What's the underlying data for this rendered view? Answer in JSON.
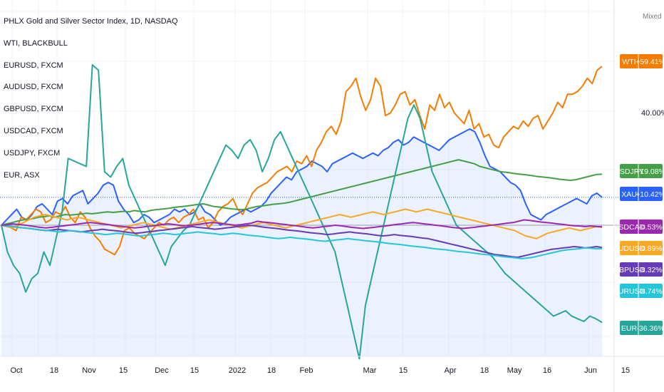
{
  "chart_data": {
    "type": "line",
    "title": "PHLX Gold and Silver Sector Index, 1D, NASDAQ",
    "legend": [
      "WTI, BLACKBULL",
      "EURUSD, FXCM",
      "AUDUSD, FXCM",
      "GBPUSD, FXCM",
      "USDCAD, FXCM",
      "USDJPY, FXCM",
      "EUR, ASX"
    ],
    "scale_mode": "Mixed",
    "price_scale_ticks": [
      "40.00%"
    ],
    "x_ticks": [
      "Oct",
      "18",
      "Nov",
      "15",
      "Dec",
      "15",
      "2022",
      "18",
      "Feb",
      "Mar",
      "15",
      "Apr",
      "18",
      "May",
      "16",
      "Jun",
      "15"
    ],
    "grid": true,
    "legend_placement": "top-left",
    "series": [
      {
        "name": "WTI",
        "color": "#f57c00",
        "value_label": "+59.41%",
        "values": [
          0,
          0.5,
          -1,
          -2,
          3,
          2,
          4,
          6,
          5,
          1,
          2,
          5,
          4,
          7,
          3,
          1,
          5,
          3,
          -1,
          -4,
          -6,
          -9,
          -10,
          -11,
          -8,
          -2,
          -1,
          -3,
          -4,
          -5,
          -3,
          -1,
          1,
          0,
          2,
          3,
          1,
          3,
          4,
          6,
          2,
          3,
          -1,
          1,
          5,
          7,
          8,
          10,
          6,
          4,
          8,
          12,
          14,
          15,
          16,
          18,
          20,
          21,
          22,
          20,
          24,
          23,
          26,
          22,
          28,
          31,
          35,
          37,
          34,
          39,
          50,
          52,
          55,
          48,
          43,
          47,
          55,
          52,
          41,
          42,
          45,
          49,
          50,
          45,
          47,
          41,
          36,
          45,
          43,
          49,
          44,
          46,
          42,
          40,
          38,
          43,
          36,
          38,
          33,
          34,
          30,
          29,
          33,
          35,
          37,
          36,
          39,
          37,
          40,
          41,
          36,
          39,
          42,
          46,
          44,
          49,
          49,
          50,
          52,
          55,
          53,
          58,
          59.41
        ]
      },
      {
        "name": "XAU",
        "color": "#2962ff",
        "value_label": "+10.42%",
        "fill": true,
        "values": [
          0,
          2,
          4,
          6,
          3,
          2,
          4,
          7,
          8,
          6,
          4,
          9,
          10,
          8,
          11,
          12,
          13,
          8,
          10,
          12,
          15,
          16,
          15,
          9,
          6,
          4,
          1,
          2,
          4,
          3,
          1,
          2,
          3,
          4,
          6,
          5,
          6,
          4,
          5,
          8,
          5,
          4,
          2,
          0,
          1,
          3,
          4,
          5,
          6,
          5,
          6,
          7,
          9,
          12,
          14,
          16,
          18,
          17,
          20,
          21,
          22,
          24,
          23,
          22,
          20,
          23,
          24,
          25,
          26,
          27,
          26,
          25,
          26,
          27,
          26,
          28,
          29,
          31,
          32,
          30,
          31,
          33,
          32,
          31,
          30,
          29,
          28,
          30,
          32,
          33,
          34,
          35,
          36,
          35,
          31,
          26,
          22,
          21,
          20,
          18,
          16,
          15,
          13,
          8,
          4,
          3,
          2,
          4,
          5,
          6,
          7,
          8,
          9,
          10,
          9,
          8,
          11,
          12,
          10.42
        ]
      },
      {
        "name": "USDJPY",
        "color": "#43a047",
        "value_label": "+19.08%",
        "values": [
          0,
          0.5,
          1,
          1.5,
          2,
          2.2,
          2.5,
          3,
          3.2,
          3.5,
          3,
          3.5,
          4,
          3.8,
          4,
          4.2,
          4.5,
          4.3,
          4.5,
          4.8,
          5,
          4.8,
          5,
          5.2,
          5,
          5.5,
          5.2,
          5,
          5.5,
          5.8,
          6,
          6.2,
          6.5,
          6.8,
          7,
          7.2,
          7.5,
          7.8,
          8,
          7.5,
          7,
          6.8,
          6.5,
          6.2,
          6,
          5.8,
          6,
          6.5,
          7,
          7.2,
          7.5,
          7.8,
          8,
          8.2,
          8.5,
          9,
          9.5,
          10,
          10.5,
          11,
          11.5,
          12,
          12.5,
          13,
          13.5,
          14,
          14.5,
          15,
          15.5,
          16,
          16.5,
          17,
          17.5,
          18,
          18.5,
          19,
          19.5,
          20,
          20.5,
          21,
          21.5,
          22,
          22.5,
          23,
          23.5,
          24,
          24.5,
          24,
          23.5,
          23,
          22,
          21.5,
          21,
          20.5,
          20,
          19.8,
          19.5,
          19.2,
          19,
          18.8,
          18.5,
          18.2,
          18,
          17.8,
          17.5,
          17.2,
          17,
          16.8,
          17,
          17.5,
          18,
          18.5,
          19,
          19.08
        ]
      },
      {
        "name": "USDCAD",
        "color": "#9c27b0",
        "value_label": "-0.53%",
        "values": [
          0,
          0.2,
          0.5,
          0.3,
          0.1,
          -0.2,
          -0.5,
          -0.8,
          -1,
          -0.8,
          -0.5,
          -0.3,
          0,
          0.2,
          0.5,
          0.8,
          1,
          0.8,
          0.5,
          0.3,
          0,
          -0.3,
          -0.5,
          -0.8,
          -1,
          -0.8,
          -0.5,
          -0.3,
          0,
          0.3,
          0.5,
          0.3,
          0,
          -0.2,
          0,
          0.2,
          0.5,
          0.8,
          1,
          0.8,
          0.5,
          0.3,
          0,
          0.2,
          0.5,
          0.8,
          1.5,
          1.2,
          1,
          0.8,
          0.5,
          0.3,
          0,
          -0.2,
          -0.5,
          -0.8,
          -1,
          -0.8,
          -0.5,
          -0.3,
          0,
          -0.2,
          -0.5,
          -0.8,
          -1,
          -1.2,
          -1,
          -0.8,
          -0.5,
          -0.3,
          0,
          0.3,
          0.5,
          0.8,
          1,
          0.8,
          0.5,
          0.3,
          0,
          -0.2,
          -0.5,
          -0.8,
          -1,
          -1.2,
          -1,
          -0.8,
          -0.5,
          -0.3,
          0,
          0.2,
          0.5,
          0.8,
          1,
          1.5,
          2,
          1.8,
          1.5,
          1.2,
          1,
          0.8,
          0.5,
          0.3,
          0,
          -0.2,
          -0.3,
          -0.5,
          -0.3,
          -0.5,
          -0.53
        ]
      },
      {
        "name": "AUDUSD",
        "color": "#f9a825",
        "value_label": "-0.89%",
        "values": [
          0,
          -0.5,
          -1,
          0,
          1,
          2,
          3,
          3.5,
          4,
          3.5,
          3,
          2.5,
          2,
          2.5,
          3,
          2.5,
          2,
          1.5,
          1,
          0.5,
          0,
          -0.5,
          -1,
          -0.5,
          0,
          0.5,
          1,
          0.5,
          0,
          -0.5,
          -1,
          -1.5,
          -1,
          -0.5,
          0,
          0.5,
          1,
          1.5,
          2,
          1.5,
          1,
          0.5,
          0,
          -0.5,
          -1,
          -0.5,
          0,
          0.5,
          1,
          0.5,
          0,
          -0.5,
          -1,
          -0.5,
          0,
          0.5,
          1,
          1.5,
          2,
          2.5,
          3,
          3.5,
          4,
          3.5,
          3,
          3.5,
          4,
          4.5,
          5,
          4.5,
          4,
          4.5,
          5,
          5.5,
          6,
          5.5,
          5,
          5.5,
          6,
          5.5,
          5,
          4.5,
          4,
          3.5,
          3,
          2.5,
          2,
          1.5,
          1,
          0.5,
          0,
          -0.5,
          -1,
          -1.5,
          -2,
          -3,
          -4,
          -4.5,
          -5,
          -4,
          -3,
          -2.5,
          -2,
          -1.5,
          -1,
          -1.5,
          -2,
          -1.5,
          -1,
          -0.5,
          -0.89
        ]
      },
      {
        "name": "GBPUSD",
        "color": "#673ab7",
        "value_label": "-8.32%",
        "values": [
          0,
          -0.3,
          -0.5,
          -0.8,
          -1,
          -1.2,
          -1.5,
          -1.8,
          -2,
          -1.8,
          -1.5,
          -1.8,
          -2,
          -2.2,
          -2.5,
          -2.3,
          -2,
          -1.8,
          -1.5,
          -1.8,
          -2,
          -2.2,
          -2.5,
          -2.8,
          -3,
          -2.8,
          -2.5,
          -2.3,
          -2,
          -1.8,
          -1.5,
          -1.3,
          -1,
          -0.8,
          -0.5,
          -0.8,
          -1,
          -1.2,
          -1.5,
          -1.3,
          -1,
          -0.8,
          -0.5,
          -0.3,
          0,
          -0.2,
          -0.5,
          -0.8,
          -1,
          -1.2,
          -1.5,
          -1.8,
          -2,
          -2.2,
          -2.5,
          -2.8,
          -3,
          -3.2,
          -3.5,
          -3.3,
          -3,
          -2.8,
          -2.5,
          -2.8,
          -3,
          -3.2,
          -3.5,
          -3.8,
          -4,
          -3.8,
          -3.5,
          -3.8,
          -4,
          -4.2,
          -4.5,
          -4.8,
          -5,
          -5.5,
          -6,
          -6.5,
          -7,
          -7.5,
          -8,
          -8.5,
          -9,
          -9.5,
          -10,
          -10.5,
          -11,
          -11.2,
          -11.5,
          -11.8,
          -12,
          -11.5,
          -11,
          -10.5,
          -10,
          -9.5,
          -9,
          -8.8,
          -8.5,
          -8.3,
          -8,
          -8.2,
          -8.5,
          -8.3,
          -8,
          -8.32
        ]
      },
      {
        "name": "EURUSD",
        "color": "#26c6da",
        "value_label": "-8.74%",
        "values": [
          0,
          -0.3,
          -0.5,
          -0.8,
          -1,
          -1.3,
          -1.5,
          -1.8,
          -2,
          -2.2,
          -2.5,
          -2.3,
          -2,
          -2.2,
          -2.5,
          -2.8,
          -3,
          -3.2,
          -3.5,
          -3.3,
          -3,
          -3.2,
          -3.5,
          -3.8,
          -4,
          -3.8,
          -3.5,
          -3.3,
          -3,
          -3.2,
          -3.5,
          -3.3,
          -3,
          -2.8,
          -2.5,
          -2.8,
          -3,
          -3.2,
          -3.5,
          -3.3,
          -3,
          -3.2,
          -3.5,
          -3.8,
          -4,
          -4.2,
          -4.5,
          -4.8,
          -5,
          -4.8,
          -4.5,
          -4.8,
          -5,
          -5.2,
          -5.5,
          -5.8,
          -6,
          -5.8,
          -5.5,
          -5.3,
          -5,
          -5.3,
          -5.5,
          -5.8,
          -6,
          -6.2,
          -6.5,
          -6.8,
          -7,
          -7.2,
          -7.5,
          -7.8,
          -8,
          -8.2,
          -8.5,
          -8.8,
          -9,
          -9.2,
          -9.5,
          -9.8,
          -10,
          -10.2,
          -10.5,
          -10.8,
          -11,
          -11.2,
          -11.5,
          -11.8,
          -12,
          -12.2,
          -12.5,
          -12.3,
          -12,
          -11.5,
          -11,
          -10.5,
          -10,
          -9.5,
          -9.2,
          -9,
          -8.8,
          -8.5,
          -8.6,
          -8.8,
          -8.74
        ]
      },
      {
        "name": "EUR",
        "color": "#26a69a",
        "value_label": "-36.36%",
        "values": [
          0,
          -10,
          -15,
          -18,
          -25,
          -20,
          -18,
          -10,
          -15,
          -5,
          5,
          25,
          24,
          23,
          22,
          60,
          58,
          20,
          18,
          22,
          25,
          15,
          10,
          5,
          0,
          -5,
          -10,
          -15,
          -8,
          -5,
          -2,
          0,
          5,
          10,
          15,
          20,
          25,
          30,
          28,
          25,
          30,
          32,
          28,
          20,
          25,
          32,
          35,
          30,
          25,
          20,
          15,
          10,
          5,
          0,
          -5,
          -10,
          -20,
          -30,
          -40,
          -50,
          -30,
          -20,
          -10,
          0,
          10,
          20,
          30,
          40,
          45,
          40,
          30,
          20,
          15,
          10,
          5,
          0,
          -2,
          -4,
          -6,
          -8,
          -10,
          -12,
          -15,
          -18,
          -20,
          -22,
          -24,
          -26,
          -28,
          -30,
          -32,
          -34,
          -33,
          -32,
          -34,
          -35,
          -36,
          -34,
          -35,
          -36.36
        ]
      }
    ]
  }
}
